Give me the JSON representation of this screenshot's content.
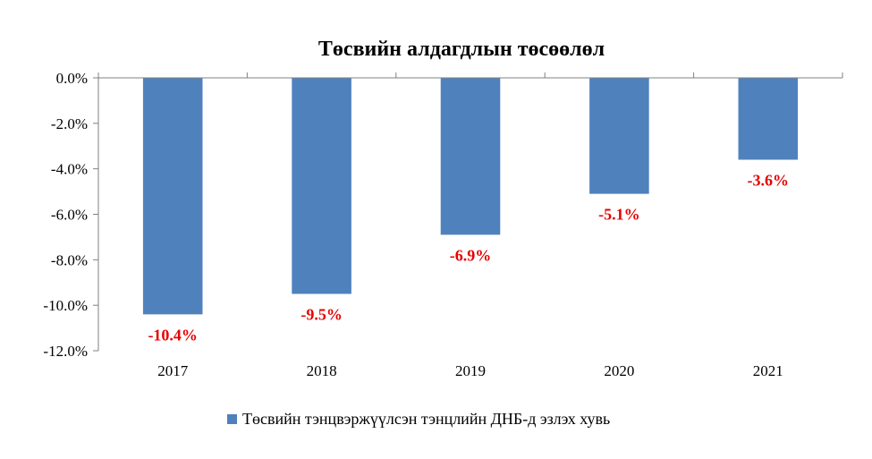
{
  "chart_data": {
    "type": "bar",
    "title": "Төсвийн алдагдлын төсөөлөл",
    "categories": [
      "2017",
      "2018",
      "2019",
      "2020",
      "2021"
    ],
    "series": [
      {
        "name": "Төсвийн тэнцвэржүүлсэн тэнцлийн ДНБ-д эзлэх хувь",
        "values": [
          -10.4,
          -9.5,
          -6.9,
          -5.1,
          -3.6
        ],
        "labels": [
          "-10.4%",
          "-9.5%",
          "-6.9%",
          "-5.1%",
          "-3.6%"
        ],
        "color": "#4f81bd"
      }
    ],
    "ylim": [
      -12,
      0
    ],
    "yticks": [
      0,
      -2,
      -4,
      -6,
      -8,
      -10,
      -12
    ],
    "ytick_labels": [
      "0.0%",
      "-2.0%",
      "-4.0%",
      "-6.0%",
      "-8.0%",
      "-10.0%",
      "-12.0%"
    ],
    "xlabel": "",
    "ylabel": "",
    "grid": false,
    "legend_position": "bottom",
    "data_label_color": "#e60000"
  }
}
